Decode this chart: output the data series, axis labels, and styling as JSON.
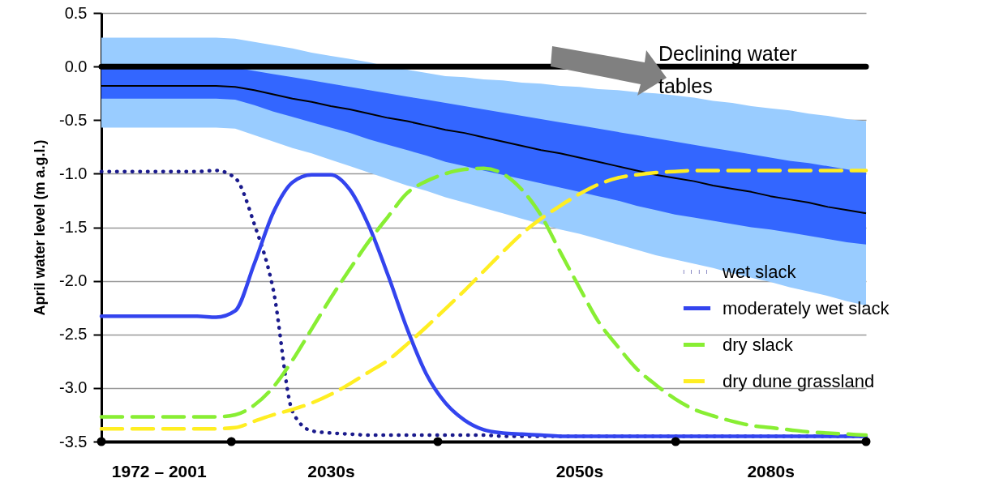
{
  "chart_data": {
    "type": "line",
    "ylabel": "April water level (m a.g.l.)",
    "categories": [
      null,
      null,
      null,
      "1972 – 2001",
      null,
      null,
      null,
      null,
      null,
      null,
      null,
      null,
      "2030s",
      null,
      null,
      null,
      null,
      null,
      null,
      null,
      null,
      null,
      null,
      null,
      null,
      "2050s",
      null,
      null,
      null,
      null,
      null,
      null,
      null,
      null,
      null,
      "2080s",
      null,
      null,
      null,
      null,
      null
    ],
    "ylim": [
      -3.5,
      0.5
    ],
    "yticks": [
      {
        "value": -3.5,
        "label": "-3.5"
      },
      {
        "value": -3,
        "label": "-3.0"
      },
      {
        "value": -2.5,
        "label": "-2.5"
      },
      {
        "value": -2,
        "label": "-2.0"
      },
      {
        "value": -1.5,
        "label": "-1.5"
      },
      {
        "value": -1,
        "label": "-1.0"
      },
      {
        "value": -0.5,
        "label": "-0.5"
      },
      {
        "value": 0,
        "label": "0.0"
      },
      {
        "value": 0.5,
        "label": "0.5"
      }
    ],
    "grid": "y",
    "legend": "right",
    "marker": "none",
    "ref_lines": [
      {
        "axis": "y",
        "value": 0,
        "color": "#000000"
      }
    ],
    "annotations": [
      "Declining water tables"
    ],
    "series": [
      {
        "color": "#99ccff",
        "values": [
          null,
          null,
          null,
          null,
          null,
          null,
          null,
          null,
          null,
          null,
          null,
          null,
          null,
          null,
          null,
          null,
          null,
          null,
          null,
          null,
          null,
          null,
          null,
          null,
          null,
          null,
          null,
          null,
          null,
          null,
          null,
          null,
          null,
          null,
          null,
          null,
          null,
          null,
          null,
          null,
          null
        ],
        "lower": [
          -0.57,
          -0.57,
          -0.57,
          -0.57,
          -0.57,
          -0.57,
          -0.57,
          -0.58,
          -0.64,
          -0.7,
          -0.76,
          -0.81,
          -0.87,
          -0.93,
          -0.99,
          -1.05,
          -1.11,
          -1.16,
          -1.22,
          -1.27,
          -1.32,
          -1.37,
          -1.42,
          -1.47,
          -1.52,
          -1.56,
          -1.61,
          -1.66,
          -1.71,
          -1.76,
          -1.8,
          -1.84,
          -1.88,
          -1.93,
          -1.97,
          -2.01,
          -2.06,
          -2.1,
          -2.14,
          -2.19,
          -2.23
        ],
        "upper": [
          0.27,
          0.27,
          0.27,
          0.27,
          0.27,
          0.27,
          0.27,
          0.26,
          0.23,
          0.2,
          0.17,
          0.13,
          0.1,
          0.07,
          0.04,
          0,
          -0.03,
          -0.06,
          -0.09,
          -0.1,
          -0.12,
          -0.13,
          -0.15,
          -0.16,
          -0.18,
          -0.19,
          -0.21,
          -0.22,
          -0.24,
          -0.25,
          -0.27,
          -0.29,
          -0.32,
          -0.34,
          -0.37,
          -0.39,
          -0.41,
          -0.44,
          -0.46,
          -0.49,
          -0.51
        ]
      },
      {
        "color": "#000000",
        "line_style": "solid",
        "values": [
          -0.18,
          -0.18,
          -0.18,
          -0.18,
          -0.18,
          -0.18,
          -0.18,
          -0.19,
          -0.22,
          -0.26,
          -0.3,
          -0.33,
          -0.37,
          -0.4,
          -0.44,
          -0.48,
          -0.51,
          -0.55,
          -0.59,
          -0.62,
          -0.66,
          -0.7,
          -0.74,
          -0.78,
          -0.81,
          -0.85,
          -0.89,
          -0.93,
          -0.97,
          -1.01,
          -1.04,
          -1.07,
          -1.11,
          -1.14,
          -1.17,
          -1.21,
          -1.24,
          -1.27,
          -1.31,
          -1.34,
          -1.37
        ],
        "lower": [
          -0.3,
          -0.3,
          -0.3,
          -0.3,
          -0.3,
          -0.3,
          -0.3,
          -0.31,
          -0.36,
          -0.42,
          -0.47,
          -0.52,
          -0.57,
          -0.62,
          -0.68,
          -0.73,
          -0.78,
          -0.83,
          -0.89,
          -0.93,
          -0.97,
          -1.01,
          -1.05,
          -1.09,
          -1.13,
          -1.17,
          -1.21,
          -1.25,
          -1.3,
          -1.34,
          -1.38,
          -1.41,
          -1.44,
          -1.47,
          -1.5,
          -1.52,
          -1.55,
          -1.58,
          -1.61,
          -1.64,
          -1.66
        ],
        "upper": [
          0,
          0,
          0,
          0,
          0,
          0,
          0,
          -0.01,
          -0.04,
          -0.07,
          -0.1,
          -0.13,
          -0.16,
          -0.19,
          -0.22,
          -0.25,
          -0.28,
          -0.31,
          -0.34,
          -0.37,
          -0.4,
          -0.43,
          -0.46,
          -0.49,
          -0.52,
          -0.55,
          -0.58,
          -0.61,
          -0.64,
          -0.67,
          -0.7,
          -0.73,
          -0.76,
          -0.79,
          -0.82,
          -0.85,
          -0.88,
          -0.9,
          -0.93,
          -0.96,
          -0.99
        ]
      },
      {
        "name": "wet slack",
        "color": "#1a1a8c",
        "line_style": "dotted",
        "values": [
          -0.98,
          -0.98,
          -0.98,
          -0.98,
          -0.98,
          -0.98,
          -0.97,
          -1.04,
          -1.47,
          -2.09,
          -3.22,
          -3.4,
          -3.42,
          -3.43,
          -3.44,
          -3.44,
          -3.44,
          -3.44,
          -3.44,
          -3.44,
          -3.44,
          -3.45,
          -3.45,
          -3.45,
          -3.45,
          -3.45,
          -3.45,
          -3.45,
          -3.45,
          -3.45,
          -3.45,
          -3.45,
          -3.45,
          -3.45,
          -3.45,
          -3.45,
          -3.45,
          -3.45,
          -3.45,
          -3.45,
          -3.45
        ]
      },
      {
        "name": "moderately wet slack",
        "color": "#3344ee",
        "line_style": "solid",
        "values": [
          -2.33,
          -2.33,
          -2.33,
          -2.33,
          -2.33,
          -2.33,
          -2.34,
          -2.28,
          -1.84,
          -1.36,
          -1.08,
          -1.01,
          -1.01,
          -1.15,
          -1.49,
          -1.95,
          -2.45,
          -2.87,
          -3.14,
          -3.3,
          -3.39,
          -3.42,
          -3.43,
          -3.44,
          -3.45,
          -3.45,
          -3.45,
          -3.45,
          -3.45,
          -3.45,
          -3.45,
          -3.45,
          -3.45,
          -3.45,
          -3.45,
          -3.45,
          -3.45,
          -3.45,
          -3.45,
          -3.45,
          -3.45
        ]
      },
      {
        "name": "dry slack",
        "color": "#88ee33",
        "line_style": "dashed",
        "values": [
          -3.27,
          -3.27,
          -3.27,
          -3.27,
          -3.27,
          -3.27,
          -3.27,
          -3.25,
          -3.16,
          -2.99,
          -2.74,
          -2.45,
          -2.16,
          -1.89,
          -1.63,
          -1.4,
          -1.18,
          -1.07,
          -1,
          -0.96,
          -0.95,
          -1,
          -1.15,
          -1.39,
          -1.73,
          -2.06,
          -2.38,
          -2.61,
          -2.82,
          -2.97,
          -3.1,
          -3.2,
          -3.26,
          -3.31,
          -3.35,
          -3.37,
          -3.39,
          -3.41,
          -3.42,
          -3.43,
          -3.44
        ]
      },
      {
        "name": "dry dune grassland",
        "color": "#ffee22",
        "line_style": "dashed",
        "values": [
          -3.38,
          -3.38,
          -3.38,
          -3.38,
          -3.38,
          -3.38,
          -3.38,
          -3.37,
          -3.31,
          -3.25,
          -3.2,
          -3.14,
          -3.06,
          -2.96,
          -2.85,
          -2.74,
          -2.59,
          -2.43,
          -2.26,
          -2.09,
          -1.91,
          -1.73,
          -1.56,
          -1.42,
          -1.3,
          -1.19,
          -1.1,
          -1.04,
          -1.01,
          -0.99,
          -0.98,
          -0.97,
          -0.97,
          -0.97,
          -0.97,
          -0.97,
          -0.97,
          -0.97,
          -0.97,
          -0.97,
          -0.97
        ]
      }
    ]
  }
}
